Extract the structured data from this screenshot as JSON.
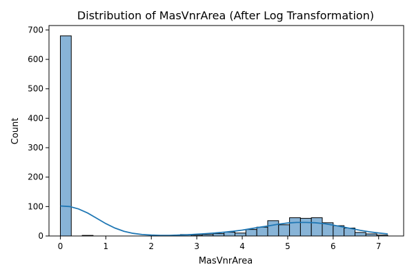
{
  "chart_data": {
    "type": "bar",
    "title": "Distribution of MasVnrArea (After Log Transformation)",
    "xlabel": "MasVnrArea",
    "ylabel": "Count",
    "xlim": [
      -0.25,
      7.55
    ],
    "ylim": [
      0,
      715
    ],
    "xticks": [
      0,
      1,
      2,
      3,
      4,
      5,
      6,
      7
    ],
    "yticks": [
      0,
      100,
      200,
      300,
      400,
      500,
      600,
      700
    ],
    "bin_width": 0.24,
    "bins": [
      {
        "x0": 0.0,
        "count": 680
      },
      {
        "x0": 0.48,
        "count": 2
      },
      {
        "x0": 2.64,
        "count": 5
      },
      {
        "x0": 2.88,
        "count": 3
      },
      {
        "x0": 3.12,
        "count": 5
      },
      {
        "x0": 3.36,
        "count": 8
      },
      {
        "x0": 3.6,
        "count": 13
      },
      {
        "x0": 3.84,
        "count": 10
      },
      {
        "x0": 4.08,
        "count": 22
      },
      {
        "x0": 4.32,
        "count": 30
      },
      {
        "x0": 4.56,
        "count": 52
      },
      {
        "x0": 4.8,
        "count": 38
      },
      {
        "x0": 5.04,
        "count": 62
      },
      {
        "x0": 5.28,
        "count": 60
      },
      {
        "x0": 5.52,
        "count": 62
      },
      {
        "x0": 5.76,
        "count": 45
      },
      {
        "x0": 6.0,
        "count": 35
      },
      {
        "x0": 6.24,
        "count": 27
      },
      {
        "x0": 6.48,
        "count": 12
      },
      {
        "x0": 6.72,
        "count": 7
      },
      {
        "x0": 6.96,
        "count": 3
      }
    ],
    "kde": {
      "x": [
        0.0,
        0.2,
        0.4,
        0.6,
        0.8,
        1.0,
        1.2,
        1.4,
        1.6,
        1.8,
        2.0,
        2.2,
        2.4,
        2.6,
        2.8,
        3.0,
        3.2,
        3.4,
        3.6,
        3.8,
        4.0,
        4.2,
        4.4,
        4.6,
        4.8,
        5.0,
        5.2,
        5.4,
        5.6,
        5.8,
        6.0,
        6.2,
        6.4,
        6.6,
        6.8,
        7.0,
        7.2
      ],
      "y": [
        102,
        100,
        92,
        78,
        60,
        42,
        27,
        16,
        9,
        5,
        3,
        2,
        2,
        3,
        4,
        6,
        8,
        10,
        13,
        16,
        20,
        25,
        30,
        35,
        40,
        44,
        46,
        46,
        45,
        42,
        37,
        31,
        25,
        19,
        14,
        10,
        7
      ]
    },
    "colors": {
      "bar_fill": "#88b4d7",
      "bar_edge": "#000000",
      "kde_line": "#1f77b4"
    },
    "grid": false,
    "legend": "none"
  }
}
